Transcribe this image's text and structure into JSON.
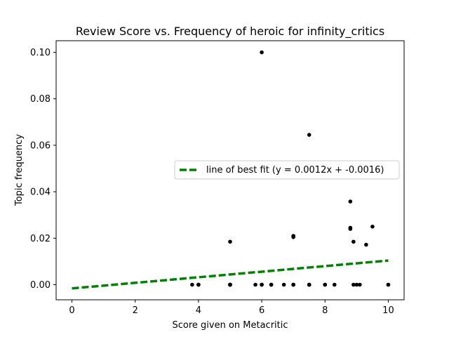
{
  "chart_data": {
    "type": "scatter",
    "title": "Review Score vs. Frequency of heroic for infinity_critics",
    "xlabel": "Score given on Metacritic",
    "ylabel": "Topic frequency",
    "xlim": [
      -0.5,
      10.5
    ],
    "ylim": [
      -0.0065,
      0.105
    ],
    "xticks": [
      0,
      2,
      4,
      6,
      8,
      10
    ],
    "xtick_labels": [
      "0",
      "2",
      "4",
      "6",
      "8",
      "10"
    ],
    "yticks": [
      0.0,
      0.02,
      0.04,
      0.06,
      0.08,
      0.1
    ],
    "ytick_labels": [
      "0.00",
      "0.02",
      "0.04",
      "0.06",
      "0.08",
      "0.10"
    ],
    "grid": false,
    "legend_position": "center-right",
    "point_color": "#000000",
    "series": [
      {
        "kind": "points",
        "x": [
          3.8,
          4.0,
          4.0,
          5.0,
          5.0,
          5.0,
          5.0,
          5.0,
          5.0,
          5.8,
          6.0,
          6.0,
          6.0,
          6.3,
          6.3,
          6.7,
          7.0,
          7.0,
          7.0,
          7.0,
          7.0,
          7.5,
          7.5,
          7.5,
          7.5,
          7.5,
          8.0,
          8.0,
          8.3,
          8.8,
          8.8,
          8.8,
          8.9,
          8.9,
          9.0,
          9.1,
          9.3,
          9.5,
          10.0,
          10.0
        ],
        "y": [
          0.0,
          0.0,
          0.0,
          0.0,
          0.0,
          0.0,
          0.0,
          0.0,
          0.0185,
          0.0,
          0.0,
          0.0,
          0.1,
          0.0,
          0.0,
          0.0,
          0.0,
          0.0,
          0.0,
          0.0205,
          0.021,
          0.0,
          0.0,
          0.0,
          0.0,
          0.0645,
          0.0,
          0.0,
          0.0,
          0.0358,
          0.0245,
          0.024,
          0.0185,
          0.0,
          0.0,
          0.0,
          0.0172,
          0.025,
          0.0,
          0.0
        ]
      },
      {
        "kind": "line",
        "name": "line of best fit (y = 0.0012x + -0.0016)",
        "x": [
          0,
          10
        ],
        "y": [
          -0.0016,
          0.0104
        ],
        "color": "#008000",
        "style": "dashed"
      }
    ]
  }
}
